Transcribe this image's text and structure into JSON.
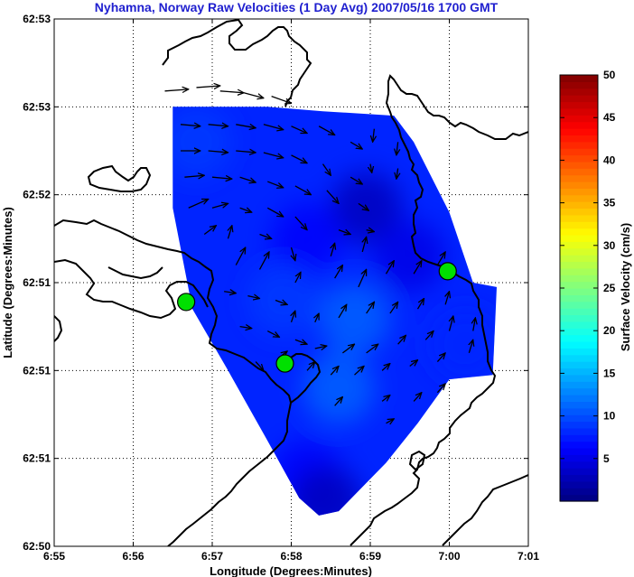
{
  "chart_data": {
    "type": "heatmap",
    "title": "Nyhamna, Norway Raw Velocities (1 Day Avg) 2007/05/16 1700 GMT",
    "xlabel": "Longitude (Degrees:Minutes)",
    "ylabel": "Latitude (Degrees:Minutes)",
    "x_ticks": [
      "6:55",
      "6:56",
      "6:57",
      "6:58",
      "6:59",
      "7:00",
      "7:01"
    ],
    "y_ticks": [
      "62:53",
      "62:53",
      "62:52",
      "62:51",
      "62:51",
      "62:51",
      "62:50"
    ],
    "xlim": [
      0,
      6
    ],
    "ylim": [
      0,
      6
    ],
    "grid": true,
    "colorbar": {
      "label": "Surface Velocity (cm/s)",
      "ticks": [
        "5",
        "10",
        "15",
        "20",
        "25",
        "30",
        "35",
        "40",
        "45",
        "50"
      ],
      "range": [
        0,
        50
      ],
      "colormap": "jet"
    },
    "coverage_polygon": [
      [
        1.5,
        5.0
      ],
      [
        2.7,
        5.0
      ],
      [
        3.4,
        4.95
      ],
      [
        4.3,
        4.9
      ],
      [
        4.55,
        4.6
      ],
      [
        5.0,
        3.8
      ],
      [
        5.3,
        3.0
      ],
      [
        5.6,
        2.95
      ],
      [
        5.55,
        1.95
      ],
      [
        5.0,
        1.9
      ],
      [
        4.6,
        1.4
      ],
      [
        4.2,
        0.95
      ],
      [
        3.6,
        0.4
      ],
      [
        3.35,
        0.35
      ],
      [
        3.1,
        0.55
      ],
      [
        2.7,
        1.2
      ],
      [
        2.2,
        2.0
      ],
      [
        1.75,
        2.7
      ],
      [
        1.5,
        3.85
      ]
    ],
    "speed_field": [
      {
        "x": 3.95,
        "y": 3.85,
        "speed": 3
      },
      {
        "x": 3.2,
        "y": 3.5,
        "speed": 6
      },
      {
        "x": 4.5,
        "y": 3.3,
        "speed": 5
      },
      {
        "x": 2.9,
        "y": 2.8,
        "speed": 9
      },
      {
        "x": 3.8,
        "y": 2.6,
        "speed": 11
      },
      {
        "x": 3.6,
        "y": 1.8,
        "speed": 11
      },
      {
        "x": 1.8,
        "y": 4.6,
        "speed": 9
      },
      {
        "x": 3.2,
        "y": 0.8,
        "speed": 6
      },
      {
        "x": 3.45,
        "y": 0.5,
        "speed": 3
      },
      {
        "x": 5.2,
        "y": 2.3,
        "speed": 8
      }
    ],
    "vectors": [
      [
        1.4,
        5.18,
        1.7,
        5.2
      ],
      [
        1.8,
        5.22,
        2.1,
        5.24
      ],
      [
        2.1,
        5.18,
        2.4,
        5.16
      ],
      [
        2.4,
        5.16,
        2.65,
        5.1
      ],
      [
        2.75,
        5.12,
        3.0,
        5.04
      ],
      [
        1.6,
        4.8,
        1.85,
        4.78
      ],
      [
        1.95,
        4.8,
        2.2,
        4.78
      ],
      [
        2.3,
        4.8,
        2.55,
        4.76
      ],
      [
        2.65,
        4.8,
        2.9,
        4.74
      ],
      [
        3.0,
        4.78,
        3.2,
        4.7
      ],
      [
        3.35,
        4.78,
        3.55,
        4.68
      ],
      [
        3.75,
        4.6,
        3.9,
        4.52
      ],
      [
        4.05,
        4.75,
        4.03,
        4.6
      ],
      [
        4.35,
        4.6,
        4.33,
        4.45
      ],
      [
        1.6,
        4.5,
        1.85,
        4.5
      ],
      [
        1.95,
        4.5,
        2.2,
        4.48
      ],
      [
        2.3,
        4.5,
        2.55,
        4.48
      ],
      [
        2.65,
        4.48,
        2.9,
        4.42
      ],
      [
        3.0,
        4.45,
        3.2,
        4.36
      ],
      [
        3.4,
        4.35,
        3.5,
        4.22
      ],
      [
        3.75,
        4.2,
        3.9,
        4.12
      ],
      [
        4.0,
        4.35,
        4.02,
        4.25
      ],
      [
        4.35,
        4.3,
        4.33,
        4.18
      ],
      [
        1.65,
        4.2,
        1.9,
        4.22
      ],
      [
        2.0,
        4.2,
        2.25,
        4.18
      ],
      [
        2.35,
        4.2,
        2.55,
        4.14
      ],
      [
        2.7,
        4.15,
        2.9,
        4.08
      ],
      [
        3.05,
        4.1,
        3.25,
        4.0
      ],
      [
        3.45,
        4.05,
        3.6,
        3.9
      ],
      [
        3.85,
        3.9,
        3.98,
        3.82
      ],
      [
        1.7,
        3.85,
        1.95,
        3.95
      ],
      [
        2.0,
        3.85,
        2.2,
        3.9
      ],
      [
        2.35,
        3.85,
        2.5,
        3.8
      ],
      [
        2.7,
        3.85,
        2.9,
        3.75
      ],
      [
        3.05,
        3.75,
        3.2,
        3.6
      ],
      [
        3.6,
        3.6,
        3.75,
        3.55
      ],
      [
        3.95,
        3.6,
        4.05,
        3.58
      ],
      [
        1.9,
        3.55,
        2.05,
        3.65
      ],
      [
        2.2,
        3.5,
        2.25,
        3.65
      ],
      [
        2.6,
        3.55,
        2.75,
        3.5
      ],
      [
        3.0,
        3.4,
        3.05,
        3.25
      ],
      [
        3.5,
        3.3,
        3.55,
        3.45
      ],
      [
        3.9,
        3.35,
        3.95,
        3.52
      ],
      [
        2.3,
        3.2,
        2.42,
        3.4
      ],
      [
        2.6,
        3.15,
        2.72,
        3.35
      ],
      [
        3.05,
        3.0,
        3.12,
        3.12
      ],
      [
        3.55,
        3.05,
        3.65,
        3.2
      ],
      [
        3.85,
        2.95,
        3.95,
        3.15
      ],
      [
        4.2,
        3.1,
        4.3,
        3.25
      ],
      [
        4.55,
        3.1,
        4.65,
        3.25
      ],
      [
        4.85,
        3.2,
        4.95,
        3.35
      ],
      [
        2.15,
        2.9,
        2.3,
        2.88
      ],
      [
        2.45,
        2.85,
        2.6,
        2.82
      ],
      [
        2.8,
        2.8,
        2.95,
        2.75
      ],
      [
        3.0,
        2.55,
        3.05,
        2.68
      ],
      [
        3.3,
        2.55,
        3.35,
        2.65
      ],
      [
        3.6,
        2.6,
        3.7,
        2.75
      ],
      [
        3.95,
        2.65,
        4.05,
        2.78
      ],
      [
        4.25,
        2.65,
        4.35,
        2.78
      ],
      [
        4.6,
        2.7,
        4.68,
        2.82
      ],
      [
        4.95,
        2.75,
        5.0,
        2.9
      ],
      [
        2.35,
        2.5,
        2.5,
        2.48
      ],
      [
        2.7,
        2.45,
        2.85,
        2.38
      ],
      [
        3.05,
        2.35,
        3.2,
        2.3
      ],
      [
        3.3,
        2.25,
        3.45,
        2.28
      ],
      [
        3.65,
        2.2,
        3.8,
        2.3
      ],
      [
        3.95,
        2.2,
        4.1,
        2.3
      ],
      [
        4.35,
        2.3,
        4.45,
        2.4
      ],
      [
        4.7,
        2.35,
        4.8,
        2.45
      ],
      [
        5.0,
        2.45,
        5.05,
        2.62
      ],
      [
        5.3,
        2.45,
        5.33,
        2.6
      ],
      [
        2.55,
        2.1,
        2.65,
        2.0
      ],
      [
        2.85,
        2.15,
        2.95,
        2.22
      ],
      [
        3.2,
        2.0,
        3.3,
        2.1
      ],
      [
        3.5,
        1.95,
        3.6,
        2.05
      ],
      [
        3.8,
        1.95,
        3.92,
        2.05
      ],
      [
        4.15,
        2.0,
        4.25,
        2.08
      ],
      [
        4.5,
        2.05,
        4.6,
        2.12
      ],
      [
        4.85,
        2.1,
        4.95,
        2.2
      ],
      [
        5.25,
        2.2,
        5.3,
        2.35
      ],
      [
        3.55,
        1.6,
        3.65,
        1.7
      ],
      [
        4.15,
        1.65,
        4.25,
        1.72
      ],
      [
        4.55,
        1.65,
        4.65,
        1.75
      ],
      [
        4.85,
        1.75,
        4.95,
        1.85
      ],
      [
        4.2,
        1.4,
        4.3,
        1.45
      ]
    ],
    "radar_sites": [
      [
        1.67,
        2.78
      ],
      [
        2.92,
        2.08
      ],
      [
        4.98,
        3.13
      ]
    ]
  }
}
